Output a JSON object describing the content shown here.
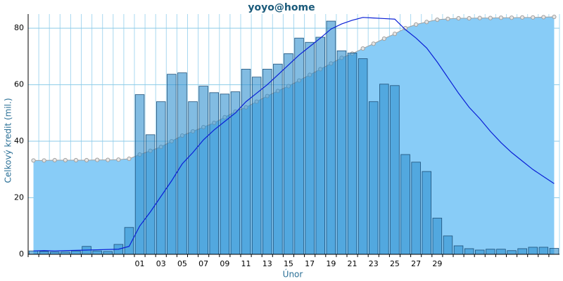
{
  "chart_data": {
    "type": "combo",
    "title": "yoyo@home",
    "y_label": "Celkový kredit (mil.)",
    "x_label": "Únor",
    "categories": [
      null,
      null,
      null,
      null,
      null,
      null,
      null,
      null,
      null,
      null,
      "01",
      null,
      "03",
      null,
      "05",
      null,
      "07",
      null,
      "09",
      null,
      "11",
      null,
      "13",
      null,
      "15",
      null,
      "17",
      null,
      "19",
      null,
      "21",
      null,
      "23",
      null,
      "25",
      null,
      "27",
      null,
      "29",
      null,
      null,
      null,
      null,
      null,
      null,
      null,
      null,
      null,
      null,
      null
    ],
    "ylim": [
      0,
      85
    ],
    "yticks": [
      0,
      20,
      40,
      60,
      80
    ],
    "grid": true,
    "series": [
      {
        "type": "area",
        "color": "#88ccf7",
        "marker_color": "#a0a0a0",
        "values": [
          33.2,
          33.2,
          33.3,
          33.3,
          33.3,
          33.3,
          33.4,
          33.4,
          33.5,
          33.8,
          35.3,
          36.6,
          38,
          40,
          42,
          43.5,
          45,
          46.5,
          48.5,
          50.5,
          52,
          54,
          56,
          57.8,
          59.5,
          61.5,
          63.5,
          65.5,
          67.5,
          69.5,
          71,
          72.8,
          74.5,
          76.3,
          78,
          80,
          81.3,
          82.2,
          83,
          83.3,
          83.5,
          83.5,
          83.6,
          83.6,
          83.7,
          83.7,
          83.8,
          83.8,
          83.9,
          84
        ]
      },
      {
        "type": "bar",
        "color": "#2f8fcf",
        "stroke": "#1d4f78",
        "values": [
          1.2,
          1,
          0.8,
          0.8,
          1.2,
          2.8,
          1.2,
          1,
          3.5,
          9.5,
          56.5,
          42.3,
          54,
          63.7,
          64.2,
          54,
          59.5,
          57.2,
          56.7,
          57.5,
          65.5,
          62.7,
          65.5,
          67.3,
          71,
          76.5,
          75,
          76.8,
          82.5,
          72,
          71.2,
          69.2,
          54,
          60.2,
          59.7,
          35.3,
          32.6,
          29.3,
          12.8,
          6.5,
          3,
          2,
          1.5,
          1.8,
          1.8,
          1.3,
          2,
          2.5,
          2.5,
          2.1
        ]
      },
      {
        "type": "line",
        "color": "#0a1fd6",
        "values": [
          1.2,
          1.3,
          1.2,
          1.3,
          1.4,
          1.5,
          1.6,
          1.7,
          1.8,
          2.8,
          10,
          15,
          20.5,
          26,
          32,
          36,
          40.5,
          44,
          47,
          50,
          54,
          57,
          60,
          63.5,
          67,
          70.5,
          73.5,
          76.5,
          79.7,
          81.5,
          82.8,
          83.8,
          83.6,
          83.4,
          83.2,
          79.5,
          76.5,
          73,
          68,
          62.5,
          57,
          52,
          48,
          43.5,
          39.5,
          36,
          33,
          30,
          27.5,
          25
        ]
      }
    ]
  }
}
